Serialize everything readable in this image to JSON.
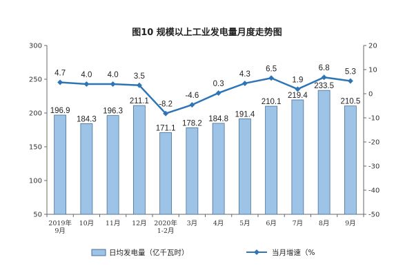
{
  "chart_data": {
    "type": "bar",
    "title": "图10  规模以上工业发电量月度走势图",
    "categories": [
      [
        "2019年",
        "9月"
      ],
      [
        "10月"
      ],
      [
        "11月"
      ],
      [
        "12月"
      ],
      [
        "2020年",
        "1-2月"
      ],
      [
        "3月"
      ],
      [
        "4月"
      ],
      [
        "5月"
      ],
      [
        "6月"
      ],
      [
        "7月"
      ],
      [
        "8月"
      ],
      [
        "9月"
      ]
    ],
    "series": [
      {
        "name": "日均发电量（亿千瓦时）",
        "type": "bar",
        "axis": "left",
        "color": "#9DC3E6",
        "values": [
          196.9,
          184.3,
          196.3,
          211.1,
          171.1,
          178.2,
          184.8,
          191.4,
          210.1,
          219.4,
          233.5,
          210.5
        ],
        "labels": [
          "196.9",
          "184.3",
          "196.3",
          "211.1",
          "171.1",
          "178.2",
          "184.8",
          "191.4",
          "210.1",
          "219.4",
          "233.5",
          "210.5"
        ]
      },
      {
        "name": "当月增速（%）",
        "type": "line",
        "axis": "right",
        "color": "#2E75B6",
        "values": [
          4.7,
          4.0,
          4.0,
          3.5,
          -8.2,
          -4.6,
          0.3,
          4.3,
          6.5,
          1.9,
          6.8,
          5.3
        ],
        "labels": [
          "4.7",
          "4.0",
          "4.0",
          "3.5",
          "-8.2",
          "-4.6",
          "0.3",
          "4.3",
          "6.5",
          "1.9",
          "6.8",
          "5.3"
        ]
      }
    ],
    "y_left": {
      "min": 50,
      "max": 300,
      "step": 50,
      "ticks": [
        "50",
        "100",
        "150",
        "200",
        "250",
        "300"
      ]
    },
    "y_right": {
      "min": -50,
      "max": 20,
      "step": 10,
      "ticks": [
        "-50",
        "-40",
        "-30",
        "-20",
        "-10",
        "0",
        "10",
        "20"
      ]
    },
    "legend": {
      "position": "bottom",
      "bar_label": "日均发电量（亿千瓦时）",
      "line_label": "当月增速（%"
    },
    "grid": false
  }
}
